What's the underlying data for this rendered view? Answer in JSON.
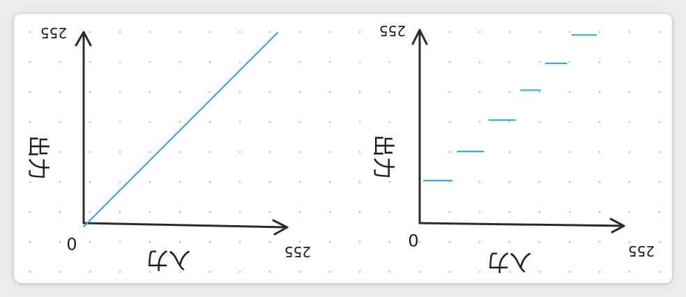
{
  "chart_data": [
    {
      "type": "line",
      "xlabel": "入力",
      "ylabel": "出力",
      "x_ticks": [
        "0",
        "255"
      ],
      "y_ticks": [
        "255"
      ],
      "xlim": [
        0,
        255
      ],
      "ylim": [
        0,
        255
      ],
      "series": [
        {
          "x": [
            0,
            255
          ],
          "y": [
            0,
            255
          ]
        }
      ]
    },
    {
      "type": "line",
      "xlabel": "入力",
      "ylabel": "出力",
      "x_ticks": [
        "0",
        "255"
      ],
      "y_ticks": [
        "255"
      ],
      "xlim": [
        0,
        255
      ],
      "ylim": [
        0,
        255
      ],
      "steps": [
        {
          "x0": 0,
          "x1": 51,
          "y": 57
        },
        {
          "x0": 51,
          "x1": 99,
          "y": 96
        },
        {
          "x0": 99,
          "x1": 147,
          "y": 138
        },
        {
          "x0": 147,
          "x1": 185,
          "y": 178
        },
        {
          "x0": 185,
          "x1": 225,
          "y": 214
        },
        {
          "x0": 225,
          "x1": 270,
          "y": 252
        }
      ]
    }
  ],
  "colors": {
    "curve": "#3fa9d6",
    "axis": "#2a2a2a",
    "grid_dot": "#c4c4c4",
    "card": "#ffffff",
    "backdrop": "#ececec"
  }
}
